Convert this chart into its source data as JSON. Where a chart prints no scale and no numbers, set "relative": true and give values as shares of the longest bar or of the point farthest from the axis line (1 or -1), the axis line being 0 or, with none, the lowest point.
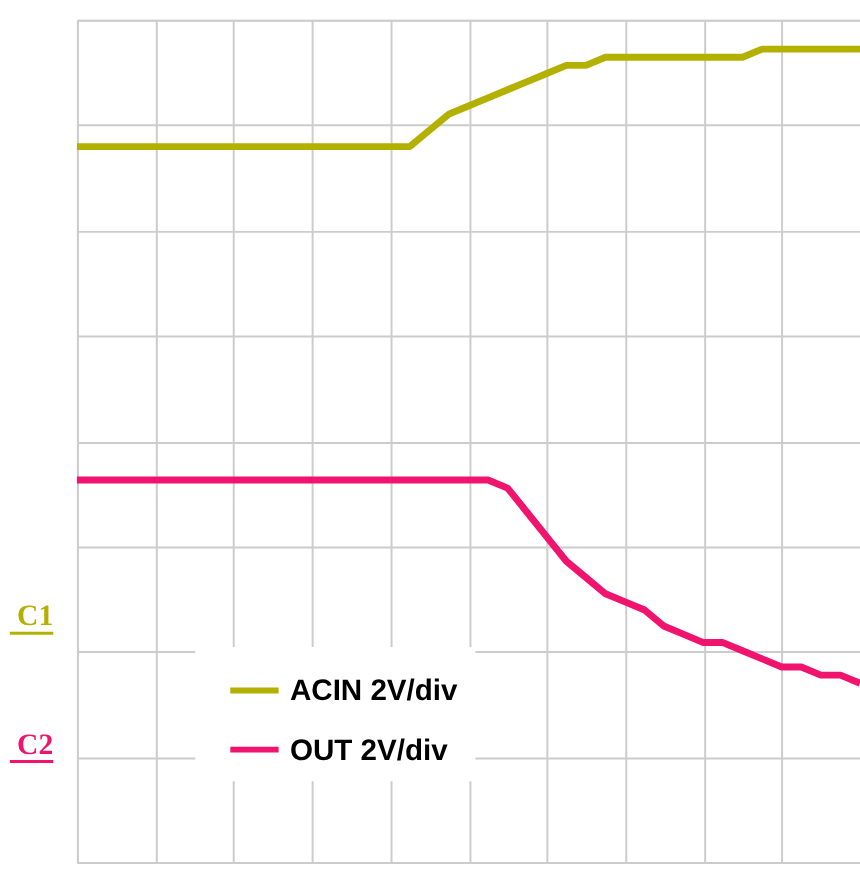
{
  "chart_data": {
    "type": "line",
    "relative": true,
    "grid": true,
    "legend": "bottom",
    "tick_labels": false,
    "categories": [
      null,
      null,
      null,
      null,
      null,
      null,
      null,
      null,
      null,
      null,
      null,
      null,
      null,
      null,
      null,
      null,
      null,
      null,
      null,
      null,
      null,
      null,
      null,
      null,
      null,
      null,
      null,
      null,
      null,
      null,
      null,
      null,
      null,
      null,
      null,
      null,
      null,
      null,
      null,
      null,
      null
    ],
    "series": [
      {
        "name": "ACIN 2V/div",
        "color": "#b4b000",
        "values": [
          0.88,
          0.88,
          0.88,
          0.88,
          0.88,
          0.88,
          0.88,
          0.88,
          0.88,
          0.88,
          0.88,
          0.88,
          0.88,
          0.88,
          0.88,
          0.88,
          0.88,
          0.88,
          0.9,
          0.92,
          0.93,
          0.94,
          0.95,
          0.96,
          0.97,
          0.98,
          0.98,
          0.99,
          0.99,
          0.99,
          0.99,
          0.99,
          0.99,
          0.99,
          0.99,
          1,
          1,
          1,
          1,
          1,
          1
        ]
      },
      {
        "name": "OUT 2V/div",
        "color": "#f0146e",
        "values": [
          0.47,
          0.47,
          0.47,
          0.47,
          0.47,
          0.47,
          0.47,
          0.47,
          0.47,
          0.47,
          0.47,
          0.47,
          0.47,
          0.47,
          0.47,
          0.47,
          0.47,
          0.47,
          0.47,
          0.47,
          0.47,
          0.47,
          0.46,
          0.43,
          0.4,
          0.37,
          0.35,
          0.33,
          0.32,
          0.31,
          0.29,
          0.28,
          0.27,
          0.27,
          0.26,
          0.25,
          0.24,
          0.24,
          0.23,
          0.23,
          0.22
        ]
      }
    ],
    "annotations": [
      "C1",
      "C2"
    ]
  }
}
